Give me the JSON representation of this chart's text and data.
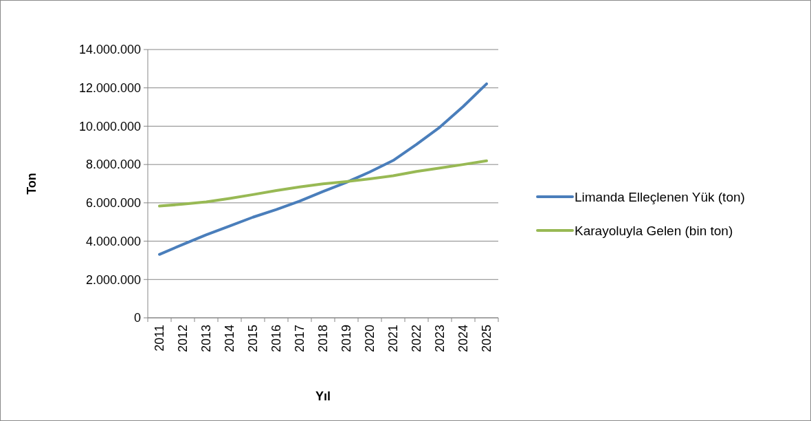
{
  "chart_data": {
    "type": "line",
    "xlabel": "Yıl",
    "ylabel": "Ton",
    "categories": [
      "2011",
      "2012",
      "2013",
      "2014",
      "2015",
      "2016",
      "2017",
      "2018",
      "2019",
      "2020",
      "2021",
      "2022",
      "2023",
      "2024",
      "2025"
    ],
    "series": [
      {
        "name": "Limanda Elleçlenen Yük (ton)",
        "color": "#4a7ebb",
        "values": [
          3310000,
          3830000,
          4330000,
          4790000,
          5250000,
          5650000,
          6090000,
          6590000,
          7070000,
          7610000,
          8210000,
          9050000,
          9950000,
          11030000,
          12210000
        ]
      },
      {
        "name": "Karayoluyla Gelen (bin ton)",
        "color": "#98b954",
        "values": [
          5830000,
          5930000,
          6050000,
          6230000,
          6430000,
          6640000,
          6830000,
          6990000,
          7110000,
          7250000,
          7410000,
          7640000,
          7820000,
          8000000,
          8190000
        ]
      }
    ],
    "ylim": [
      0,
      14000000
    ],
    "yticks": [
      {
        "value": 0,
        "label": "0"
      },
      {
        "value": 2000000,
        "label": "2.000.000"
      },
      {
        "value": 4000000,
        "label": "4.000.000"
      },
      {
        "value": 6000000,
        "label": "6.000.000"
      },
      {
        "value": 8000000,
        "label": "8.000.000"
      },
      {
        "value": 10000000,
        "label": "10.000.000"
      },
      {
        "value": 12000000,
        "label": "12.000.000"
      },
      {
        "value": 14000000,
        "label": "14.000.000"
      }
    ],
    "grid": "y",
    "legend": "right",
    "marker": "none",
    "line_style": "solid"
  }
}
